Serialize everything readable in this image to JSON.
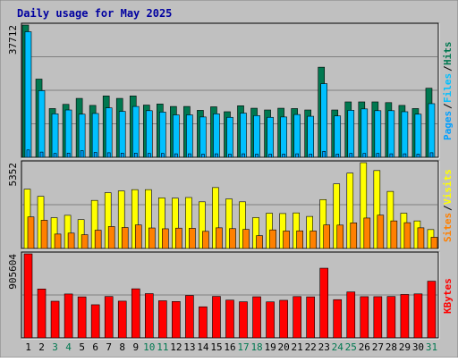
{
  "chart_data": {
    "type": "bar",
    "title": "Daily usage for May 2025",
    "categories": [
      "1",
      "2",
      "3",
      "4",
      "5",
      "6",
      "7",
      "8",
      "9",
      "10",
      "11",
      "12",
      "13",
      "14",
      "15",
      "16",
      "17",
      "18",
      "19",
      "20",
      "21",
      "22",
      "23",
      "24",
      "25",
      "26",
      "27",
      "28",
      "29",
      "30",
      "31"
    ],
    "weekend_days": [
      "3",
      "4",
      "10",
      "11",
      "17",
      "18",
      "24",
      "25",
      "31"
    ],
    "colors": {
      "title": "#0000a0",
      "background": "#c0c0c0",
      "frame": "#ffffff",
      "hits": "#007850",
      "files": "#00c0ff",
      "pages": "#00a0ff",
      "visits": "#ffff00",
      "sites": "#ff8000",
      "kbytes": "#ff0000",
      "weekday_label": "#000000",
      "weekend_label": "#007850"
    },
    "panels": [
      {
        "id": "top",
        "ymax_label": "37712",
        "ymax": 37712,
        "legend": [
          {
            "text": "Pages",
            "color": "#00a0ff"
          },
          {
            "text": "/",
            "color": "#000000"
          },
          {
            "text": "Files",
            "color": "#00c0ff"
          },
          {
            "text": "/",
            "color": "#000000"
          },
          {
            "text": "Hits",
            "color": "#007850"
          }
        ],
        "series": [
          {
            "name": "Hits",
            "values": [
              37712,
              22300,
              13900,
              15100,
              16800,
              14800,
              17500,
              16800,
              17500,
              14900,
              15200,
              14500,
              14500,
              13400,
              14400,
              13000,
              14700,
              14000,
              13500,
              14000,
              13900,
              13500,
              25700,
              13500,
              15800,
              15800,
              15800,
              15600,
              14800,
              13900,
              19700
            ]
          },
          {
            "name": "Files",
            "values": [
              35800,
              19000,
              12400,
              13500,
              12300,
              12500,
              14100,
              13100,
              14500,
              13300,
              12900,
              12100,
              12100,
              11500,
              12400,
              11400,
              12600,
              11900,
              11400,
              11500,
              12200,
              11700,
              21000,
              11800,
              13400,
              13800,
              13300,
              13300,
              13000,
              12300,
              15300
            ]
          },
          {
            "name": "Pages",
            "values": [
              2100,
              1500,
              1100,
              1200,
              1900,
              1400,
              1300,
              1200,
              1200,
              1100,
              1100,
              1000,
              1000,
              900,
              1000,
              900,
              1000,
              900,
              900,
              900,
              1000,
              900,
              1700,
              900,
              1100,
              1100,
              1100,
              1000,
              1000,
              900,
              1300
            ]
          }
        ]
      },
      {
        "id": "middle",
        "ymax_label": "5352",
        "ymax": 5352,
        "legend": [
          {
            "text": "Sites",
            "color": "#ff8000"
          },
          {
            "text": "/",
            "color": "#000000"
          },
          {
            "text": "Visits",
            "color": "#ffff00"
          }
        ],
        "series": [
          {
            "name": "Visits",
            "values": [
              3700,
              3250,
              1920,
              2070,
              1800,
              3000,
              3480,
              3590,
              3670,
              3670,
              3160,
              3140,
              3180,
              2910,
              3800,
              3090,
              2910,
              1930,
              2200,
              2180,
              2220,
              2000,
              3050,
              4030,
              4700,
              5352,
              4860,
              3560,
              2200,
              1720,
              1180
            ]
          },
          {
            "name": "Sites",
            "values": [
              1970,
              1760,
              900,
              960,
              860,
              1140,
              1370,
              1310,
              1470,
              1280,
              1230,
              1270,
              1260,
              1070,
              1290,
              1240,
              1190,
              800,
              1160,
              1090,
              1100,
              1090,
              1470,
              1460,
              1600,
              1900,
              2080,
              1720,
              1610,
              1290,
              700
            ]
          }
        ]
      },
      {
        "id": "bottom",
        "ymax_label": "905604",
        "ymax": 905604,
        "legend": [
          {
            "text": "KBytes",
            "color": "#ff0000"
          }
        ],
        "series": [
          {
            "name": "KBytes",
            "values": [
              905604,
              527000,
              395000,
              473000,
              442000,
              357000,
              446000,
              396000,
              529000,
              477000,
              400000,
              392000,
              457000,
              335000,
              447000,
              407000,
              389000,
              443000,
              388000,
              405000,
              445000,
              442000,
              751000,
              412000,
              495000,
              444000,
              444000,
              446000,
              468000,
              474000,
              611000
            ]
          }
        ]
      }
    ]
  }
}
